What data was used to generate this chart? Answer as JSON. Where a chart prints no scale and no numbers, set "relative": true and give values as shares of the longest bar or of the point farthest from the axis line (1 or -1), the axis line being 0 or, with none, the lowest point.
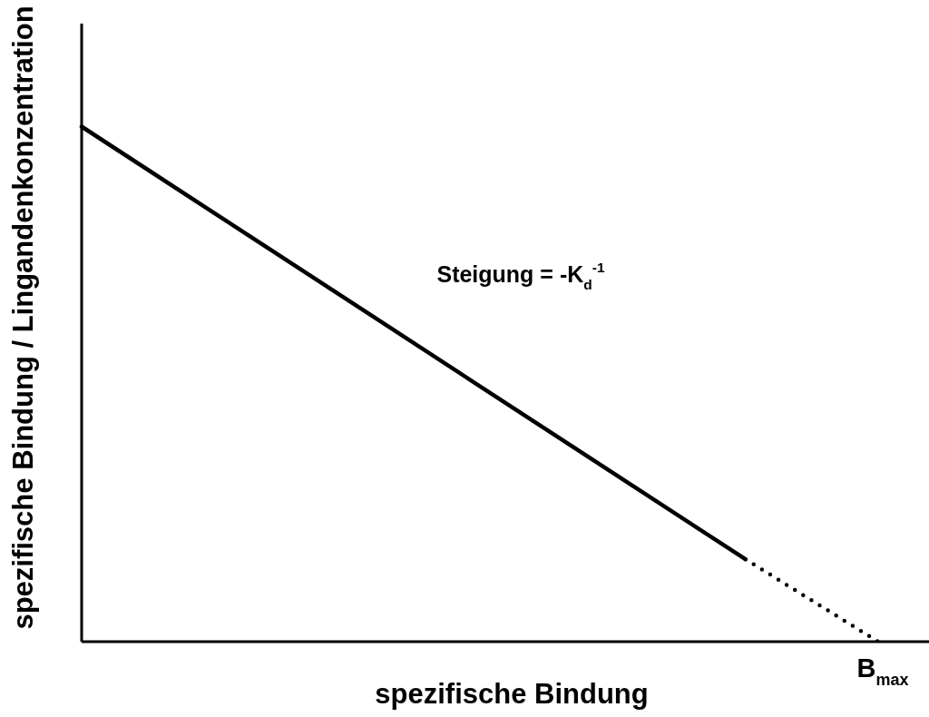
{
  "chart_data": {
    "type": "line",
    "xlabel": "spezifische Bindung",
    "ylabel": "spezifische Bindung / Lingandenkonzentration",
    "annotations": [
      "Steigung = -K$_{d}$$^{-1}$",
      "B$_{max}$"
    ],
    "relative": true,
    "categories": [
      null,
      null,
      null,
      null,
      null,
      null,
      null
    ],
    "series": [
      {
        "values": [
          1,
          0.832,
          0.664,
          0.496,
          0.328,
          0.16,
          null
        ],
        "color": "#000000",
        "line_style": "solid"
      },
      {
        "values": [
          null,
          null,
          null,
          null,
          null,
          0.16,
          0
        ],
        "color": "#000000",
        "line_style": "dotted"
      }
    ]
  }
}
